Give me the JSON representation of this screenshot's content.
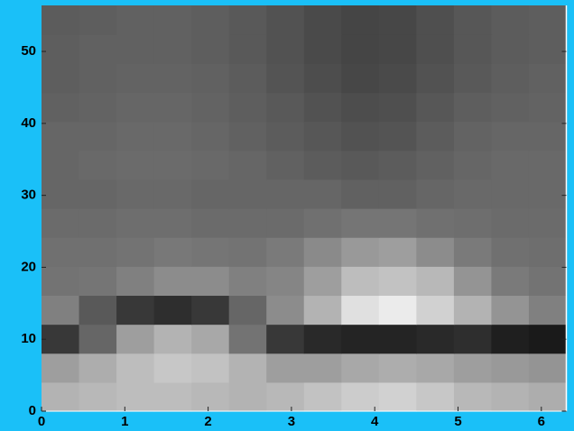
{
  "chart_data": {
    "type": "image",
    "colormap": "gray",
    "xlim": [
      0,
      6.3
    ],
    "ylim": [
      0,
      56.4
    ],
    "xticks": [
      0,
      1,
      2,
      3,
      4,
      5,
      6
    ],
    "yticks": [
      0,
      10,
      20,
      30,
      40,
      50
    ],
    "z": [
      [
        0.7,
        0.72,
        0.74,
        0.74,
        0.72,
        0.7,
        0.72,
        0.76,
        0.8,
        0.82,
        0.78,
        0.72,
        0.7,
        0.68
      ],
      [
        0.62,
        0.68,
        0.74,
        0.78,
        0.76,
        0.7,
        0.62,
        0.62,
        0.66,
        0.68,
        0.66,
        0.62,
        0.6,
        0.58
      ],
      [
        0.22,
        0.4,
        0.62,
        0.7,
        0.66,
        0.45,
        0.22,
        0.16,
        0.14,
        0.14,
        0.16,
        0.18,
        0.12,
        0.1
      ],
      [
        0.5,
        0.35,
        0.22,
        0.18,
        0.22,
        0.4,
        0.55,
        0.7,
        0.88,
        0.92,
        0.82,
        0.7,
        0.58,
        0.5
      ],
      [
        0.45,
        0.46,
        0.5,
        0.55,
        0.55,
        0.5,
        0.52,
        0.62,
        0.74,
        0.76,
        0.72,
        0.58,
        0.48,
        0.45
      ],
      [
        0.44,
        0.44,
        0.45,
        0.47,
        0.46,
        0.45,
        0.48,
        0.54,
        0.6,
        0.62,
        0.55,
        0.48,
        0.44,
        0.43
      ],
      [
        0.42,
        0.42,
        0.43,
        0.43,
        0.42,
        0.42,
        0.42,
        0.44,
        0.46,
        0.46,
        0.44,
        0.43,
        0.42,
        0.42
      ],
      [
        0.4,
        0.4,
        0.41,
        0.41,
        0.4,
        0.4,
        0.4,
        0.4,
        0.38,
        0.38,
        0.4,
        0.41,
        0.41,
        0.41
      ],
      [
        0.4,
        0.41,
        0.42,
        0.42,
        0.41,
        0.4,
        0.38,
        0.36,
        0.35,
        0.36,
        0.38,
        0.4,
        0.41,
        0.41
      ],
      [
        0.4,
        0.4,
        0.41,
        0.41,
        0.4,
        0.38,
        0.36,
        0.34,
        0.32,
        0.33,
        0.36,
        0.39,
        0.4,
        0.4
      ],
      [
        0.38,
        0.39,
        0.4,
        0.4,
        0.39,
        0.37,
        0.35,
        0.32,
        0.3,
        0.31,
        0.34,
        0.37,
        0.38,
        0.39
      ],
      [
        0.37,
        0.38,
        0.39,
        0.39,
        0.38,
        0.36,
        0.33,
        0.3,
        0.28,
        0.29,
        0.32,
        0.35,
        0.37,
        0.38
      ],
      [
        0.37,
        0.38,
        0.38,
        0.38,
        0.37,
        0.35,
        0.32,
        0.29,
        0.27,
        0.28,
        0.31,
        0.34,
        0.36,
        0.37
      ],
      [
        0.36,
        0.37,
        0.38,
        0.38,
        0.37,
        0.35,
        0.32,
        0.29,
        0.27,
        0.28,
        0.31,
        0.34,
        0.36,
        0.37
      ]
    ]
  }
}
